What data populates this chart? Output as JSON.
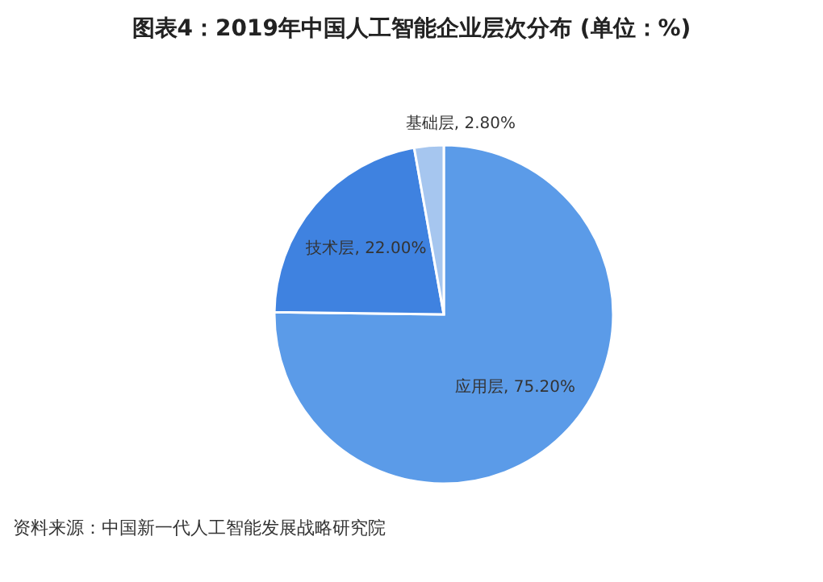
{
  "chart_data": {
    "type": "pie",
    "title": "图表4：2019年中国人工智能企业层次分布 (单位：%)",
    "categories": [
      "应用层",
      "技术层",
      "基础层"
    ],
    "values": [
      75.2,
      22.0,
      2.8
    ],
    "value_labels": [
      "75.20%",
      "22.00%",
      "2.80%"
    ],
    "colors": [
      "#5b9be8",
      "#3f82e0",
      "#a6c6ef"
    ],
    "annotations": [
      "资料来源：中国新一代人工智能发展战略研究院"
    ]
  }
}
